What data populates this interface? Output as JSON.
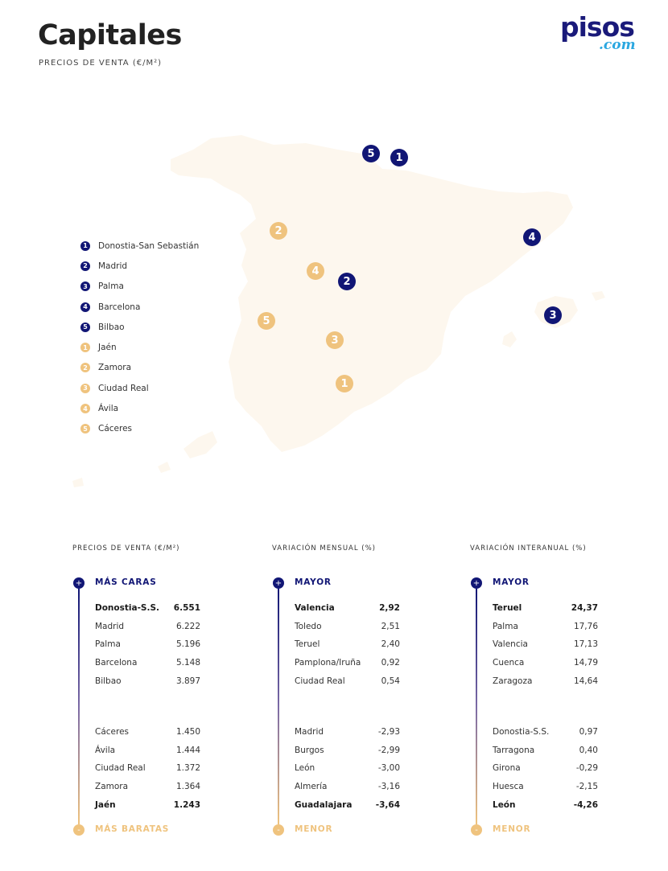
{
  "header": {
    "title": "Capitales",
    "subtitle": "PRECIOS DE VENTA (€/M²)",
    "logo_main": "pisos",
    "logo_suffix": ".com"
  },
  "colors": {
    "navy": "#111675",
    "gold": "#efc37e",
    "map_fill": "#fdf7ee"
  },
  "map": {
    "markers": [
      {
        "rank": "1",
        "city": "Donostia-San Sebastián",
        "group": "navy"
      },
      {
        "rank": "2",
        "city": "Madrid",
        "group": "navy"
      },
      {
        "rank": "3",
        "city": "Palma",
        "group": "navy"
      },
      {
        "rank": "4",
        "city": "Barcelona",
        "group": "navy"
      },
      {
        "rank": "5",
        "city": "Bilbao",
        "group": "navy"
      },
      {
        "rank": "1",
        "city": "Jaén",
        "group": "gold"
      },
      {
        "rank": "2",
        "city": "Zamora",
        "group": "gold"
      },
      {
        "rank": "3",
        "city": "Ciudad Real",
        "group": "gold"
      },
      {
        "rank": "4",
        "city": "Ávila",
        "group": "gold"
      },
      {
        "rank": "5",
        "city": "Cáceres",
        "group": "gold"
      }
    ]
  },
  "legend": [
    {
      "rank": "1",
      "label": "Donostia-San Sebastián"
    },
    {
      "rank": "2",
      "label": "Madrid"
    },
    {
      "rank": "3",
      "label": "Palma"
    },
    {
      "rank": "4",
      "label": "Barcelona"
    },
    {
      "rank": "5",
      "label": "Bilbao"
    },
    {
      "rank": "1",
      "label": "Jaén"
    },
    {
      "rank": "2",
      "label": "Zamora"
    },
    {
      "rank": "3",
      "label": "Ciudad Real"
    },
    {
      "rank": "4",
      "label": "Ávila"
    },
    {
      "rank": "5",
      "label": "Cáceres"
    }
  ],
  "tables": [
    {
      "title": "PRECIOS DE VENTA (€/M²)",
      "top_label": "MÁS CARAS",
      "bottom_label": "MÁS BARATAS",
      "top_symbol": "+",
      "bottom_symbol": "-",
      "top": [
        {
          "name": "Donostia-S.S.",
          "value": "6.551"
        },
        {
          "name": "Madrid",
          "value": "6.222"
        },
        {
          "name": "Palma",
          "value": "5.196"
        },
        {
          "name": "Barcelona",
          "value": "5.148"
        },
        {
          "name": "Bilbao",
          "value": "3.897"
        }
      ],
      "bottom": [
        {
          "name": "Cáceres",
          "value": "1.450"
        },
        {
          "name": "Ávila",
          "value": "1.444"
        },
        {
          "name": "Ciudad Real",
          "value": "1.372"
        },
        {
          "name": "Zamora",
          "value": "1.364"
        },
        {
          "name": "Jaén",
          "value": "1.243"
        }
      ]
    },
    {
      "title": "VARIACIÓN MENSUAL (%)",
      "top_label": "MAYOR",
      "bottom_label": "MENOR",
      "top_symbol": "+",
      "bottom_symbol": "-",
      "top": [
        {
          "name": "Valencia",
          "value": "2,92"
        },
        {
          "name": "Toledo",
          "value": "2,51"
        },
        {
          "name": "Teruel",
          "value": "2,40"
        },
        {
          "name": "Pamplona/Iruña",
          "value": "0,92"
        },
        {
          "name": "Ciudad Real",
          "value": "0,54"
        }
      ],
      "bottom": [
        {
          "name": "Madrid",
          "value": "-2,93"
        },
        {
          "name": "Burgos",
          "value": "-2,99"
        },
        {
          "name": "León",
          "value": "-3,00"
        },
        {
          "name": "Almería",
          "value": "-3,16"
        },
        {
          "name": "Guadalajara",
          "value": "-3,64"
        }
      ]
    },
    {
      "title": "VARIACIÓN INTERANUAL (%)",
      "top_label": "MAYOR",
      "bottom_label": "MENOR",
      "top_symbol": "+",
      "bottom_symbol": "-",
      "top": [
        {
          "name": "Teruel",
          "value": "24,37"
        },
        {
          "name": "Palma",
          "value": "17,76"
        },
        {
          "name": "Valencia",
          "value": "17,13"
        },
        {
          "name": "Cuenca",
          "value": "14,79"
        },
        {
          "name": "Zaragoza",
          "value": "14,64"
        }
      ],
      "bottom": [
        {
          "name": "Donostia-S.S.",
          "value": "0,97"
        },
        {
          "name": "Tarragona",
          "value": "0,40"
        },
        {
          "name": "Girona",
          "value": "-0,29"
        },
        {
          "name": "Huesca",
          "value": "-2,15"
        },
        {
          "name": "León",
          "value": "-4,26"
        }
      ]
    }
  ]
}
